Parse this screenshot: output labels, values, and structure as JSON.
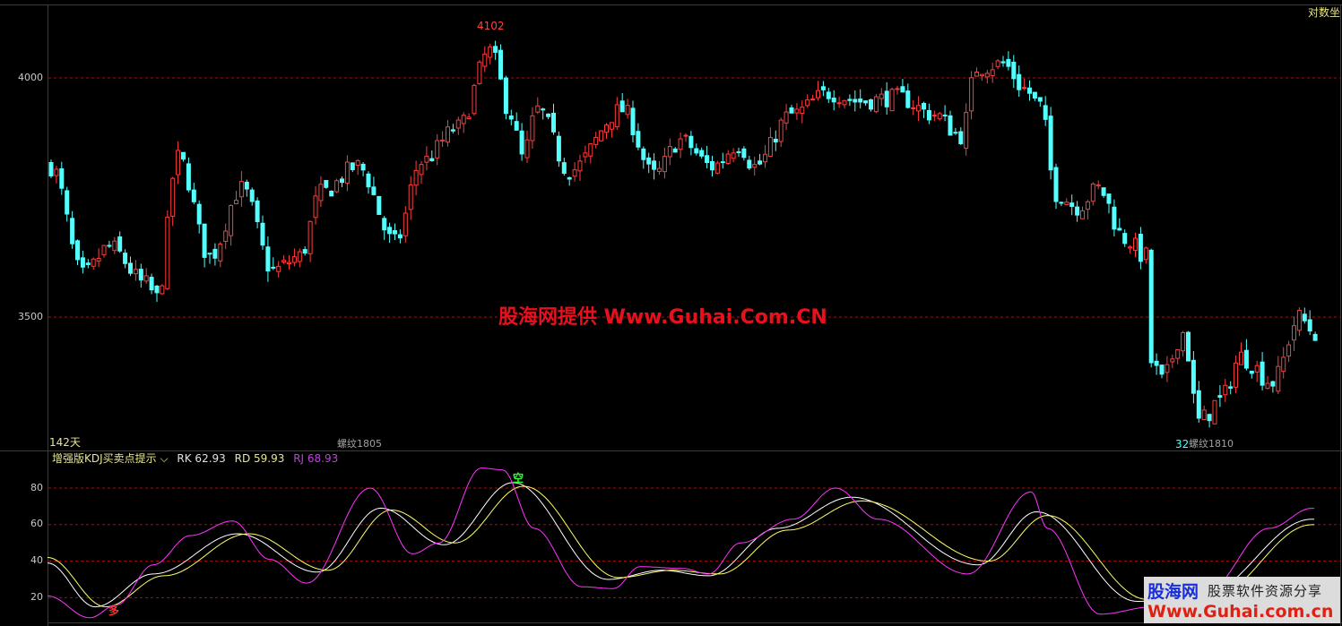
{
  "header": {
    "scale_mode": "对数坐"
  },
  "main_panel": {
    "high_label": "4102",
    "low_label": "32",
    "days_label": "142天",
    "contract_labels": [
      "螺纹1805",
      "螺纹1810"
    ],
    "watermark": "股海网提供 Www.Guhai.Com.CN"
  },
  "indicator_panel": {
    "name": "增强版KDJ买卖点提示",
    "dropdown_icon": "chevron-down-icon",
    "rk_label": "RK 62.93",
    "rd_label": "RD 59.93",
    "rj_label": "RJ 68.93",
    "buy_signal": "多",
    "sell_signal": "空"
  },
  "logo": {
    "brand": "股海网",
    "slogan": "股票软件资源分享",
    "url": "Www.Guhai.com.cn"
  },
  "colors": {
    "up": "#ff3c3c",
    "down": "#54ffff",
    "grid": "#a01010",
    "rk": "#ffffff",
    "rd": "#ffff66",
    "rj": "#ff33ff"
  },
  "chart_data": [
    {
      "type": "candlestick",
      "scale": "log",
      "yticks": [
        "4000",
        "3500"
      ],
      "ylim": [
        3220,
        4110
      ],
      "candle_count": 240,
      "close_anchors": [
        [
          0,
          3807
        ],
        [
          6,
          3582
        ],
        [
          11,
          3639
        ],
        [
          18,
          3564
        ],
        [
          20,
          3536
        ],
        [
          24,
          3826
        ],
        [
          30,
          3620
        ],
        [
          36,
          3760
        ],
        [
          42,
          3592
        ],
        [
          47,
          3620
        ],
        [
          51,
          3751
        ],
        [
          58,
          3807
        ],
        [
          65,
          3648
        ],
        [
          70,
          3817
        ],
        [
          77,
          3891
        ],
        [
          83,
          4060
        ],
        [
          87,
          3919
        ],
        [
          89,
          3826
        ],
        [
          92,
          3929
        ],
        [
          98,
          3798
        ],
        [
          108,
          3929
        ],
        [
          114,
          3788
        ],
        [
          119,
          3863
        ],
        [
          125,
          3807
        ],
        [
          130,
          3854
        ],
        [
          133,
          3807
        ],
        [
          140,
          3919
        ],
        [
          147,
          3966
        ],
        [
          153,
          3948
        ],
        [
          160,
          3957
        ],
        [
          167,
          3919
        ],
        [
          172,
          3873
        ],
        [
          175,
          4022
        ],
        [
          180,
          4032
        ],
        [
          184,
          3976
        ],
        [
          187,
          3938
        ],
        [
          190,
          3751
        ],
        [
          194,
          3723
        ],
        [
          198,
          3760
        ],
        [
          203,
          3657
        ],
        [
          207,
          3620
        ],
        [
          208,
          3414
        ],
        [
          210,
          3376
        ],
        [
          214,
          3470
        ],
        [
          217,
          3301
        ],
        [
          221,
          3339
        ],
        [
          225,
          3423
        ],
        [
          231,
          3376
        ],
        [
          236,
          3498
        ],
        [
          239,
          3470
        ]
      ]
    },
    {
      "type": "line",
      "yticks": [
        "80",
        "60",
        "40",
        "20"
      ],
      "ylim": [
        5,
        95
      ],
      "series": [
        {
          "name": "RK",
          "color": "#ffffff",
          "anchors": [
            [
              0,
              39
            ],
            [
              9,
              15
            ],
            [
              20,
              33
            ],
            [
              36,
              55
            ],
            [
              51,
              34
            ],
            [
              63,
              69
            ],
            [
              75,
              49
            ],
            [
              88,
              83
            ],
            [
              106,
              30
            ],
            [
              116,
              35
            ],
            [
              125,
              32
            ],
            [
              138,
              58
            ],
            [
              152,
              75
            ],
            [
              176,
              38
            ],
            [
              187,
              67
            ],
            [
              206,
              18
            ],
            [
              218,
              21
            ],
            [
              239,
              62.93
            ]
          ]
        },
        {
          "name": "RD",
          "color": "#ffff66",
          "anchors": [
            [
              0,
              42
            ],
            [
              11,
              15
            ],
            [
              22,
              32
            ],
            [
              38,
              55
            ],
            [
              53,
              35
            ],
            [
              65,
              68
            ],
            [
              77,
              50
            ],
            [
              90,
              81
            ],
            [
              108,
              31
            ],
            [
              118,
              35
            ],
            [
              127,
              33
            ],
            [
              140,
              57
            ],
            [
              154,
              73
            ],
            [
              178,
              40
            ],
            [
              189,
              65
            ],
            [
              208,
              19
            ],
            [
              220,
              20
            ],
            [
              239,
              59.93
            ]
          ]
        },
        {
          "name": "RJ",
          "color": "#ff33ff",
          "anchors": [
            [
              0,
              21
            ],
            [
              8,
              9
            ],
            [
              13,
              16
            ],
            [
              20,
              38
            ],
            [
              27,
              54
            ],
            [
              35,
              62
            ],
            [
              42,
              41
            ],
            [
              49,
              28
            ],
            [
              61,
              80
            ],
            [
              69,
              44
            ],
            [
              74,
              50
            ],
            [
              82,
              91
            ],
            [
              86,
              90
            ],
            [
              92,
              58
            ],
            [
              101,
              26
            ],
            [
              107,
              25
            ],
            [
              112,
              37
            ],
            [
              120,
              36
            ],
            [
              125,
              33
            ],
            [
              131,
              50
            ],
            [
              141,
              63
            ],
            [
              149,
              80
            ],
            [
              157,
              63
            ],
            [
              174,
              33
            ],
            [
              186,
              78
            ],
            [
              189,
              58
            ],
            [
              199,
              11
            ],
            [
              209,
              15
            ],
            [
              219,
              23
            ],
            [
              231,
              58
            ],
            [
              239,
              68.93
            ]
          ]
        }
      ],
      "signals": [
        {
          "label": "多",
          "index": 12,
          "value": 14
        },
        {
          "label": "空",
          "index": 88,
          "value": 85
        }
      ]
    }
  ]
}
